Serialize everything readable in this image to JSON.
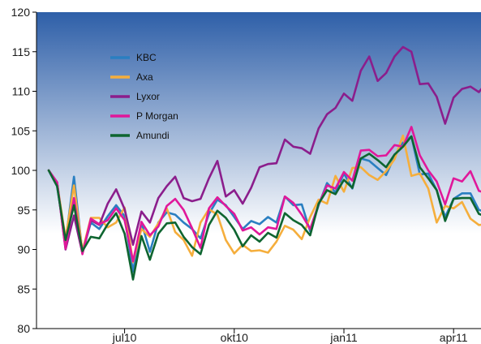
{
  "chart_data": {
    "type": "line",
    "title": "",
    "xlabel": "",
    "ylabel": "",
    "ylim": [
      80,
      120
    ],
    "y_ticks": [
      80,
      85,
      90,
      95,
      100,
      105,
      110,
      115,
      120
    ],
    "x_tick_labels": [
      "jul10",
      "okt10",
      "jan11",
      "apr11"
    ],
    "x_tick_index": [
      9,
      22,
      35,
      48
    ],
    "x_range": [
      0,
      53
    ],
    "grid": false,
    "legend_position": "top-left",
    "background": {
      "gradient_top": "#2e5fa8",
      "gradient_bottom": "#ffffff"
    },
    "series": [
      {
        "name": "KBC",
        "color": "#2a7fc1",
        "values": [
          100,
          98,
          91,
          99.2,
          89.6,
          93.4,
          92.6,
          94.2,
          95.6,
          94.2,
          87.2,
          93.4,
          89.7,
          93.4,
          94.7,
          94.4,
          93.4,
          92.6,
          91.4,
          94.5,
          96.3,
          95.6,
          94.1,
          92.6,
          93.6,
          93.2,
          94.1,
          93.4,
          96.7,
          95.6,
          95.7,
          92.3,
          95.6,
          98.4,
          97.2,
          99.6,
          97.7,
          101.5,
          101.2,
          100.3,
          99.4,
          101.8,
          103.5,
          104.3,
          99.5,
          99.6,
          97.5,
          94.1,
          96.4,
          97.1,
          97.1,
          95,
          94.7
        ]
      },
      {
        "name": "Axa",
        "color": "#f5ae3c",
        "values": [
          100,
          98.4,
          91.4,
          98.1,
          89.8,
          94,
          94,
          92.8,
          93.4,
          95.3,
          88.4,
          92.6,
          91.6,
          93.3,
          95.2,
          92.2,
          91.2,
          89.2,
          93.4,
          95.1,
          94.4,
          91.2,
          89.5,
          90.6,
          89.8,
          89.9,
          89.6,
          91,
          93,
          92.5,
          91.3,
          94.1,
          96.3,
          95.8,
          99.3,
          97.3,
          100.3,
          100.4,
          99.4,
          98.8,
          99.9,
          101.4,
          104.4,
          99.3,
          99.6,
          97.7,
          93.4,
          95.5,
          95.2,
          96,
          93.9,
          93.1,
          93.2
        ]
      },
      {
        "name": "Lyxor",
        "color": "#8b1e8c",
        "values": [
          100,
          98.5,
          90,
          94.3,
          89.5,
          93.7,
          93.1,
          95.8,
          97.6,
          95.1,
          90.6,
          94.8,
          93.4,
          96.5,
          98,
          99.2,
          96.5,
          96.1,
          96.4,
          99,
          101.2,
          96.7,
          97.5,
          95.8,
          97.8,
          100.4,
          100.8,
          100.9,
          103.9,
          103,
          102.8,
          102.1,
          105.3,
          107.1,
          107.9,
          109.7,
          108.8,
          112.6,
          114.4,
          111.3,
          112.3,
          114.4,
          115.6,
          115,
          110.9,
          111,
          109.3,
          105.9,
          109.2,
          110.3,
          110.6,
          109.9,
          111.2
        ]
      },
      {
        "name": "P Morgan",
        "color": "#e0189a",
        "values": [
          100,
          98.5,
          90.1,
          96.5,
          89.4,
          93.9,
          93.2,
          93.7,
          95.2,
          93.7,
          88.5,
          93.5,
          91.8,
          92.9,
          95.5,
          96.4,
          95,
          92.7,
          90.2,
          95.2,
          96.6,
          95.5,
          94.5,
          92.4,
          92.8,
          91.9,
          92.8,
          92.6,
          96.7,
          95.9,
          94.4,
          92.6,
          95.7,
          98.1,
          97.7,
          99.8,
          98.7,
          102.5,
          102.6,
          101.8,
          101.9,
          103.2,
          103,
          105.5,
          101.9,
          100,
          98.6,
          95.7,
          99,
          98.6,
          99.9,
          97.4,
          97.1
        ]
      },
      {
        "name": "Amundi",
        "color": "#0e6530",
        "values": [
          100,
          98,
          91.2,
          95.6,
          89.8,
          91.6,
          91.4,
          93.2,
          94.6,
          92,
          86.2,
          91.7,
          88.7,
          92,
          93.3,
          93.4,
          91.6,
          90.3,
          89.4,
          93.1,
          94.9,
          94,
          92.5,
          90.4,
          91.8,
          91,
          92.1,
          91.5,
          94.6,
          93.7,
          93.1,
          91.8,
          95.8,
          97.5,
          97,
          98.8,
          97.8,
          101.5,
          102.1,
          101.3,
          100.4,
          102,
          103,
          104.3,
          100.4,
          99,
          97.5,
          93.6,
          96.4,
          96.5,
          96.5,
          94.5,
          94.1
        ]
      }
    ]
  }
}
